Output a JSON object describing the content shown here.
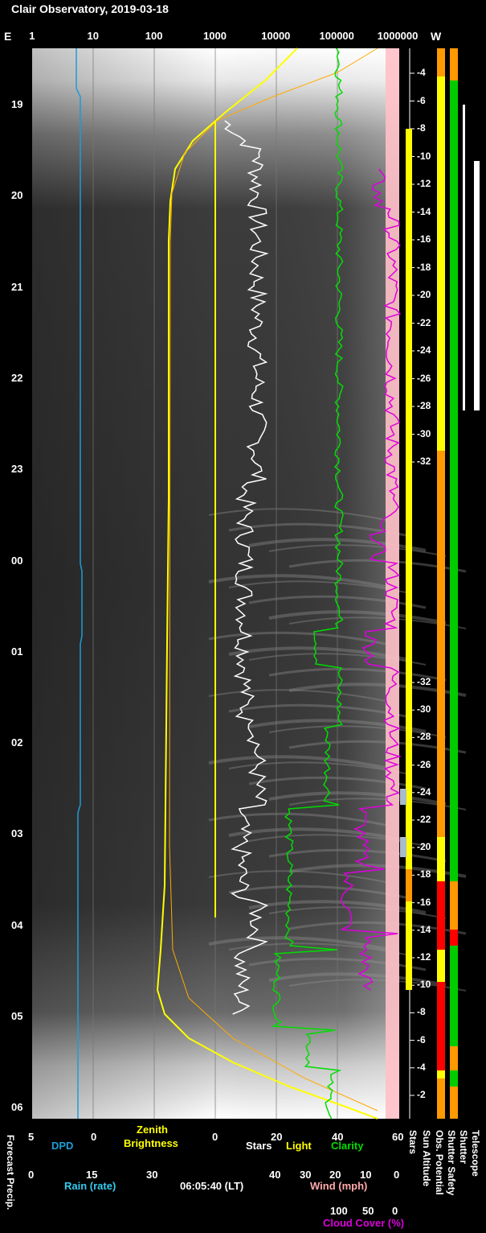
{
  "title": "Clair Observatory, 2019-03-18",
  "compass": {
    "east": "E",
    "west": "W"
  },
  "top_axis_ticks": [
    "1",
    "10",
    "100",
    "1000",
    "10000",
    "100000",
    "1000000"
  ],
  "hour_ticks": [
    "19",
    "20",
    "21",
    "22",
    "23",
    "00",
    "01",
    "02",
    "03",
    "04",
    "05",
    "06"
  ],
  "sun_altitude_ticks_upper": [
    "-4",
    "-6",
    "-8",
    "-10",
    "-12",
    "-14",
    "-16",
    "-18",
    "-20",
    "-22",
    "-24",
    "-26",
    "-28",
    "-30",
    "-32"
  ],
  "sun_altitude_ticks_lower": [
    "-32",
    "-30",
    "-28",
    "-26",
    "-24",
    "-22",
    "-20",
    "-18",
    "-16",
    "-14",
    "-12",
    "-10",
    "-8",
    "-6",
    "-4",
    "-2"
  ],
  "bottom_axes": {
    "dpd": {
      "label": "DPD",
      "ticks": [
        "5",
        "0"
      ],
      "color": "#1e9cd7"
    },
    "zenith": {
      "label_line1": "Zenith",
      "label_line2": "Brightness",
      "color": "#ffff00"
    },
    "stars": {
      "label": "Stars",
      "ticks": [
        "0",
        "20",
        "40",
        "60"
      ],
      "color": "#ffffff"
    },
    "light": {
      "label": "Light",
      "color": "#ffff00"
    },
    "clarity": {
      "label": "Clarity",
      "color": "#00dd00"
    },
    "rain": {
      "label": "Rain (rate)",
      "ticks": [
        "0",
        "15",
        "30"
      ],
      "color": "#33ccee"
    },
    "time": "06:05:40 (LT)",
    "wind": {
      "label": "Wind (mph)",
      "ticks": [
        "40",
        "30",
        "20",
        "10",
        "0"
      ],
      "color": "#ffaaaa"
    },
    "cloud": {
      "label": "Cloud Cover (%)",
      "ticks": [
        "100",
        "50",
        "0"
      ],
      "color": "#dd00dd"
    }
  },
  "side_labels": {
    "forecast": "Forecast Precip.",
    "stars": "Stars",
    "sun_altitude": "Sun Altitude",
    "obs_potential": "Obs. Potential",
    "shutter_safety": "Shutter Safety",
    "shutter": "Shutter",
    "telescope": "Telescope"
  },
  "chart_data": {
    "type": "line",
    "title": "Clair Observatory, 2019-03-18",
    "x_axis": {
      "scale": "log",
      "range": [
        1,
        1000000
      ],
      "label": "Zenith Brightness"
    },
    "y_axis": {
      "label": "Local time",
      "range": [
        "18:20",
        "06:05"
      ]
    },
    "series": [
      {
        "name": "DPD",
        "color": "#1e9cd7"
      },
      {
        "name": "Zenith Brightness",
        "color": "#ffff00"
      },
      {
        "name": "Stars",
        "color": "#ffffff"
      },
      {
        "name": "Light",
        "color": "#ffff00"
      },
      {
        "name": "Clarity",
        "color": "#00dd00"
      },
      {
        "name": "Cloud Cover (%)",
        "color": "#dd00dd"
      }
    ]
  }
}
